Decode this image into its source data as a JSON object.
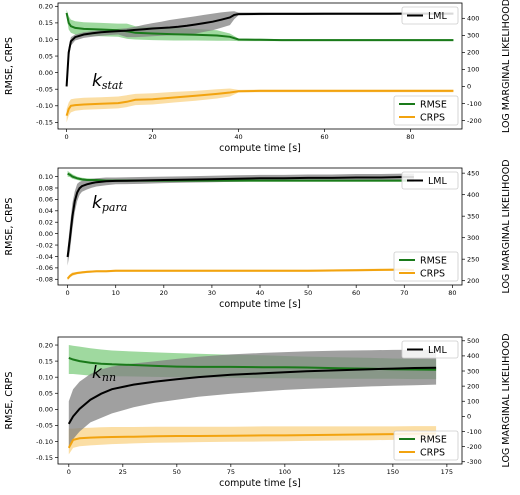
{
  "colors": {
    "rmse": "#1a7a1a",
    "rmse_band": "#5fbf5f",
    "crps": "#f2a30f",
    "crps_band": "#f7c35a",
    "lml": "#000000",
    "lml_band": "#808080"
  },
  "chart_data": [
    {
      "type": "line",
      "panel_label": {
        "main": "k",
        "sub": "stat"
      },
      "xlabel": "compute time [s]",
      "ylabel_left": "RMSE, CRPS",
      "ylabel_right": "LOG MARGINAL LIKELIHOOD",
      "xlim": [
        -2,
        92
      ],
      "ylim_left": [
        -0.17,
        0.21
      ],
      "ylim_right": [
        -250,
        490
      ],
      "x_ticks": [
        0,
        20,
        40,
        60,
        80
      ],
      "y_ticks_left": [
        -0.15,
        -0.1,
        -0.05,
        0.0,
        0.05,
        0.1,
        0.15,
        0.2
      ],
      "y_tick_labels_left": [
        "-0.15",
        "-0.10",
        "-0.05",
        "0.00",
        "0.05",
        "0.10",
        "0.15",
        "0.20"
      ],
      "y_ticks_right": [
        -200,
        -100,
        0,
        100,
        200,
        300,
        400
      ],
      "legend_lml": {
        "entries": [
          "LML"
        ],
        "placement": "top-right"
      },
      "legend_scores": {
        "entries": [
          "RMSE",
          "CRPS"
        ],
        "placement": "bottom-right"
      },
      "series": [
        {
          "name": "LML",
          "axis": "right",
          "x": [
            0,
            0.5,
            1,
            2,
            4,
            6,
            8,
            10,
            12,
            14,
            16,
            18,
            20,
            22,
            24,
            26,
            28,
            30,
            32,
            34,
            36,
            38,
            39,
            40,
            45,
            50,
            55,
            60,
            65,
            70,
            75,
            80,
            85,
            90
          ],
          "y": [
            0,
            200,
            265,
            290,
            305,
            312,
            318,
            322,
            325,
            328,
            332,
            336,
            340,
            343,
            346,
            350,
            356,
            364,
            372,
            380,
            392,
            405,
            420,
            425,
            426,
            426,
            426,
            427,
            427,
            427,
            427,
            428,
            428,
            428
          ],
          "band_lower": [
            0,
            160,
            240,
            270,
            285,
            292,
            298,
            302,
            305,
            290,
            290,
            292,
            295,
            298,
            300,
            302,
            305,
            310,
            320,
            330,
            345,
            360,
            395,
            418,
            419,
            420,
            420,
            420,
            421,
            421,
            421,
            421,
            421,
            421
          ],
          "band_upper": [
            0,
            230,
            290,
            305,
            318,
            325,
            330,
            334,
            338,
            342,
            350,
            362,
            372,
            380,
            390,
            398,
            405,
            412,
            420,
            428,
            435,
            440,
            442,
            434,
            434,
            434,
            434,
            434,
            434,
            434,
            434,
            434,
            434,
            434
          ]
        },
        {
          "name": "RMSE",
          "axis": "left",
          "x": [
            0,
            0.5,
            1,
            2,
            4,
            8,
            12,
            14,
            16,
            20,
            25,
            30,
            35,
            38,
            40,
            45,
            50,
            60,
            70,
            80,
            90
          ],
          "y": [
            0.18,
            0.15,
            0.14,
            0.135,
            0.132,
            0.13,
            0.128,
            0.125,
            0.12,
            0.118,
            0.116,
            0.114,
            0.112,
            0.108,
            0.1,
            0.099,
            0.098,
            0.098,
            0.098,
            0.098,
            0.098
          ],
          "band_lower": [
            0.17,
            0.13,
            0.12,
            0.115,
            0.112,
            0.11,
            0.108,
            0.102,
            0.1,
            0.098,
            0.097,
            0.097,
            0.096,
            0.096,
            0.095,
            0.095,
            0.095,
            0.095,
            0.095,
            0.095,
            0.095
          ],
          "band_upper": [
            0.19,
            0.17,
            0.16,
            0.155,
            0.152,
            0.15,
            0.148,
            0.148,
            0.14,
            0.138,
            0.135,
            0.132,
            0.128,
            0.118,
            0.103,
            0.102,
            0.101,
            0.101,
            0.101,
            0.101,
            0.101
          ]
        },
        {
          "name": "CRPS",
          "axis": "left",
          "x": [
            0,
            0.5,
            1,
            2,
            4,
            8,
            12,
            14,
            16,
            20,
            25,
            30,
            35,
            38,
            40,
            45,
            50,
            60,
            70,
            80,
            90
          ],
          "y": [
            -0.13,
            -0.11,
            -0.1,
            -0.098,
            -0.096,
            -0.094,
            -0.092,
            -0.088,
            -0.082,
            -0.08,
            -0.075,
            -0.07,
            -0.064,
            -0.06,
            -0.056,
            -0.055,
            -0.055,
            -0.055,
            -0.055,
            -0.055,
            -0.055
          ],
          "band_lower": [
            -0.15,
            -0.13,
            -0.12,
            -0.115,
            -0.112,
            -0.11,
            -0.108,
            -0.104,
            -0.098,
            -0.096,
            -0.09,
            -0.085,
            -0.078,
            -0.072,
            -0.06,
            -0.059,
            -0.059,
            -0.059,
            -0.059,
            -0.059,
            -0.059
          ],
          "band_upper": [
            -0.11,
            -0.09,
            -0.08,
            -0.078,
            -0.076,
            -0.074,
            -0.072,
            -0.068,
            -0.064,
            -0.062,
            -0.058,
            -0.055,
            -0.05,
            -0.048,
            -0.052,
            -0.051,
            -0.051,
            -0.051,
            -0.051,
            -0.051,
            -0.051
          ]
        }
      ]
    },
    {
      "type": "line",
      "panel_label": {
        "main": "k",
        "sub": "para"
      },
      "xlabel": "compute time [s]",
      "ylabel_left": "RMSE, CRPS",
      "ylabel_right": "LOG MARGINAL LIKELIHOOD",
      "xlim": [
        -2,
        82
      ],
      "ylim_left": [
        -0.09,
        0.115
      ],
      "ylim_right": [
        190,
        462
      ],
      "x_ticks": [
        0,
        10,
        20,
        30,
        40,
        50,
        60,
        70,
        80
      ],
      "y_ticks_left": [
        -0.08,
        -0.06,
        -0.04,
        -0.02,
        0.0,
        0.02,
        0.04,
        0.06,
        0.08,
        0.1
      ],
      "y_tick_labels_left": [
        "-0.08",
        "-0.06",
        "-0.04",
        "-0.02",
        "0.00",
        "0.02",
        "0.04",
        "0.06",
        "0.08",
        "0.10"
      ],
      "y_ticks_right": [
        200,
        250,
        300,
        350,
        400,
        450
      ],
      "legend_lml": {
        "entries": [
          "LML"
        ],
        "placement": "top-right"
      },
      "legend_scores": {
        "entries": [
          "RMSE",
          "CRPS"
        ],
        "placement": "bottom-right"
      },
      "series": [
        {
          "name": "LML",
          "axis": "right",
          "x": [
            0,
            0.5,
            1,
            1.5,
            2,
            2.5,
            3,
            4,
            5,
            6,
            8,
            10,
            15,
            20,
            25,
            30,
            35,
            40,
            45,
            50,
            55,
            60,
            65,
            70,
            72
          ],
          "y": [
            255,
            300,
            350,
            385,
            405,
            415,
            420,
            424,
            427,
            429,
            431,
            432,
            433,
            434,
            435,
            436,
            437,
            438,
            438,
            439,
            439,
            440,
            440,
            441,
            441
          ],
          "band_lower": [
            235,
            270,
            320,
            360,
            385,
            400,
            407,
            412,
            416,
            419,
            422,
            424,
            425,
            427,
            428,
            429,
            430,
            431,
            431,
            432,
            432,
            433,
            433,
            434,
            434
          ],
          "band_upper": [
            275,
            330,
            380,
            408,
            425,
            430,
            432,
            435,
            437,
            438,
            440,
            440,
            441,
            442,
            443,
            444,
            445,
            446,
            446,
            447,
            447,
            448,
            448,
            449,
            449
          ]
        },
        {
          "name": "RMSE",
          "axis": "left",
          "x": [
            0,
            0.5,
            1,
            2,
            3,
            4,
            6,
            8,
            10,
            20,
            30,
            40,
            50,
            60,
            70,
            72
          ],
          "y": [
            0.105,
            0.103,
            0.1,
            0.097,
            0.095,
            0.094,
            0.094,
            0.093,
            0.093,
            0.093,
            0.093,
            0.093,
            0.093,
            0.093,
            0.093,
            0.093
          ],
          "band_lower": [
            0.1,
            0.099,
            0.096,
            0.094,
            0.092,
            0.092,
            0.091,
            0.091,
            0.091,
            0.091,
            0.091,
            0.091,
            0.091,
            0.091,
            0.091,
            0.091
          ],
          "band_upper": [
            0.11,
            0.107,
            0.104,
            0.1,
            0.098,
            0.097,
            0.096,
            0.095,
            0.095,
            0.095,
            0.095,
            0.095,
            0.095,
            0.095,
            0.095,
            0.095
          ]
        },
        {
          "name": "CRPS",
          "axis": "left",
          "x": [
            0,
            0.5,
            1,
            2,
            3,
            4,
            6,
            8,
            10,
            20,
            30,
            40,
            50,
            60,
            70,
            72
          ],
          "y": [
            -0.079,
            -0.074,
            -0.071,
            -0.069,
            -0.068,
            -0.067,
            -0.066,
            -0.066,
            -0.065,
            -0.065,
            -0.065,
            -0.065,
            -0.065,
            -0.064,
            -0.063,
            -0.064
          ],
          "band_lower": [
            -0.082,
            -0.077,
            -0.074,
            -0.071,
            -0.07,
            -0.069,
            -0.068,
            -0.068,
            -0.067,
            -0.067,
            -0.067,
            -0.067,
            -0.067,
            -0.066,
            -0.065,
            -0.066
          ],
          "band_upper": [
            -0.076,
            -0.071,
            -0.068,
            -0.067,
            -0.066,
            -0.065,
            -0.064,
            -0.064,
            -0.063,
            -0.063,
            -0.063,
            -0.063,
            -0.063,
            -0.062,
            -0.061,
            -0.062
          ]
        }
      ]
    },
    {
      "type": "line",
      "panel_label": {
        "main": "k",
        "sub": "nn"
      },
      "xlabel": "compute time [s]",
      "ylabel_left": "RMSE, CRPS",
      "ylabel_right": "LOG MARGINAL LIKELIHOOD",
      "xlim": [
        -5,
        182
      ],
      "ylim_left": [
        -0.17,
        0.225
      ],
      "ylim_right": [
        -315,
        525
      ],
      "x_ticks": [
        0,
        25,
        50,
        75,
        100,
        125,
        150,
        175
      ],
      "y_ticks_left": [
        -0.15,
        -0.1,
        -0.05,
        0.0,
        0.05,
        0.1,
        0.15,
        0.2
      ],
      "y_tick_labels_left": [
        "-0.15",
        "-0.10",
        "-0.05",
        "0.00",
        "0.05",
        "0.10",
        "0.15",
        "0.20"
      ],
      "y_ticks_right": [
        -300,
        -200,
        -100,
        0,
        100,
        200,
        300,
        400,
        500
      ],
      "legend_lml": {
        "entries": [
          "LML"
        ],
        "placement": "top-right"
      },
      "legend_scores": {
        "entries": [
          "RMSE",
          "CRPS"
        ],
        "placement": "bottom-right"
      },
      "series": [
        {
          "name": "LML",
          "axis": "right",
          "x": [
            0,
            2,
            5,
            10,
            15,
            20,
            30,
            40,
            50,
            60,
            75,
            90,
            100,
            110,
            125,
            140,
            150,
            160,
            170
          ],
          "y": [
            -50,
            0,
            50,
            110,
            150,
            180,
            210,
            230,
            245,
            260,
            275,
            285,
            292,
            298,
            305,
            312,
            316,
            320,
            322
          ],
          "band_lower": [
            -200,
            -150,
            -100,
            -40,
            -10,
            20,
            60,
            90,
            110,
            130,
            150,
            165,
            175,
            182,
            190,
            198,
            202,
            206,
            210
          ],
          "band_upper": [
            100,
            180,
            230,
            280,
            310,
            330,
            350,
            365,
            380,
            395,
            410,
            420,
            425,
            430,
            435,
            438,
            440,
            441,
            442
          ]
        },
        {
          "name": "RMSE",
          "axis": "left",
          "x": [
            0,
            2,
            5,
            10,
            15,
            20,
            30,
            40,
            50,
            60,
            75,
            90,
            100,
            110,
            125,
            140,
            150,
            160,
            170
          ],
          "y": [
            0.16,
            0.155,
            0.15,
            0.145,
            0.142,
            0.14,
            0.138,
            0.135,
            0.133,
            0.132,
            0.132,
            0.131,
            0.131,
            0.13,
            0.128,
            0.126,
            0.125,
            0.124,
            0.123
          ],
          "band_lower": [
            0.11,
            0.11,
            0.108,
            0.105,
            0.104,
            0.103,
            0.102,
            0.101,
            0.1,
            0.099,
            0.098,
            0.097,
            0.097,
            0.096,
            0.095,
            0.095,
            0.095,
            0.094,
            0.094
          ],
          "band_upper": [
            0.2,
            0.198,
            0.195,
            0.19,
            0.186,
            0.183,
            0.18,
            0.177,
            0.175,
            0.173,
            0.17,
            0.168,
            0.166,
            0.164,
            0.162,
            0.16,
            0.158,
            0.157,
            0.156
          ]
        },
        {
          "name": "CRPS",
          "axis": "left",
          "x": [
            0,
            2,
            5,
            10,
            15,
            20,
            30,
            40,
            50,
            60,
            75,
            90,
            100,
            110,
            125,
            140,
            150,
            160,
            170
          ],
          "y": [
            -0.12,
            -0.095,
            -0.09,
            -0.088,
            -0.087,
            -0.086,
            -0.085,
            -0.084,
            -0.083,
            -0.083,
            -0.082,
            -0.081,
            -0.081,
            -0.08,
            -0.079,
            -0.078,
            -0.077,
            -0.076,
            -0.075
          ],
          "band_lower": [
            -0.14,
            -0.12,
            -0.115,
            -0.112,
            -0.11,
            -0.108,
            -0.106,
            -0.104,
            -0.103,
            -0.102,
            -0.101,
            -0.1,
            -0.099,
            -0.098,
            -0.097,
            -0.096,
            -0.095,
            -0.094,
            -0.094
          ],
          "band_upper": [
            -0.06,
            -0.06,
            -0.058,
            -0.057,
            -0.056,
            -0.055,
            -0.055,
            -0.054,
            -0.054,
            -0.054,
            -0.054,
            -0.053,
            -0.053,
            -0.053,
            -0.053,
            -0.053,
            -0.053,
            -0.052,
            -0.052
          ]
        }
      ]
    }
  ]
}
